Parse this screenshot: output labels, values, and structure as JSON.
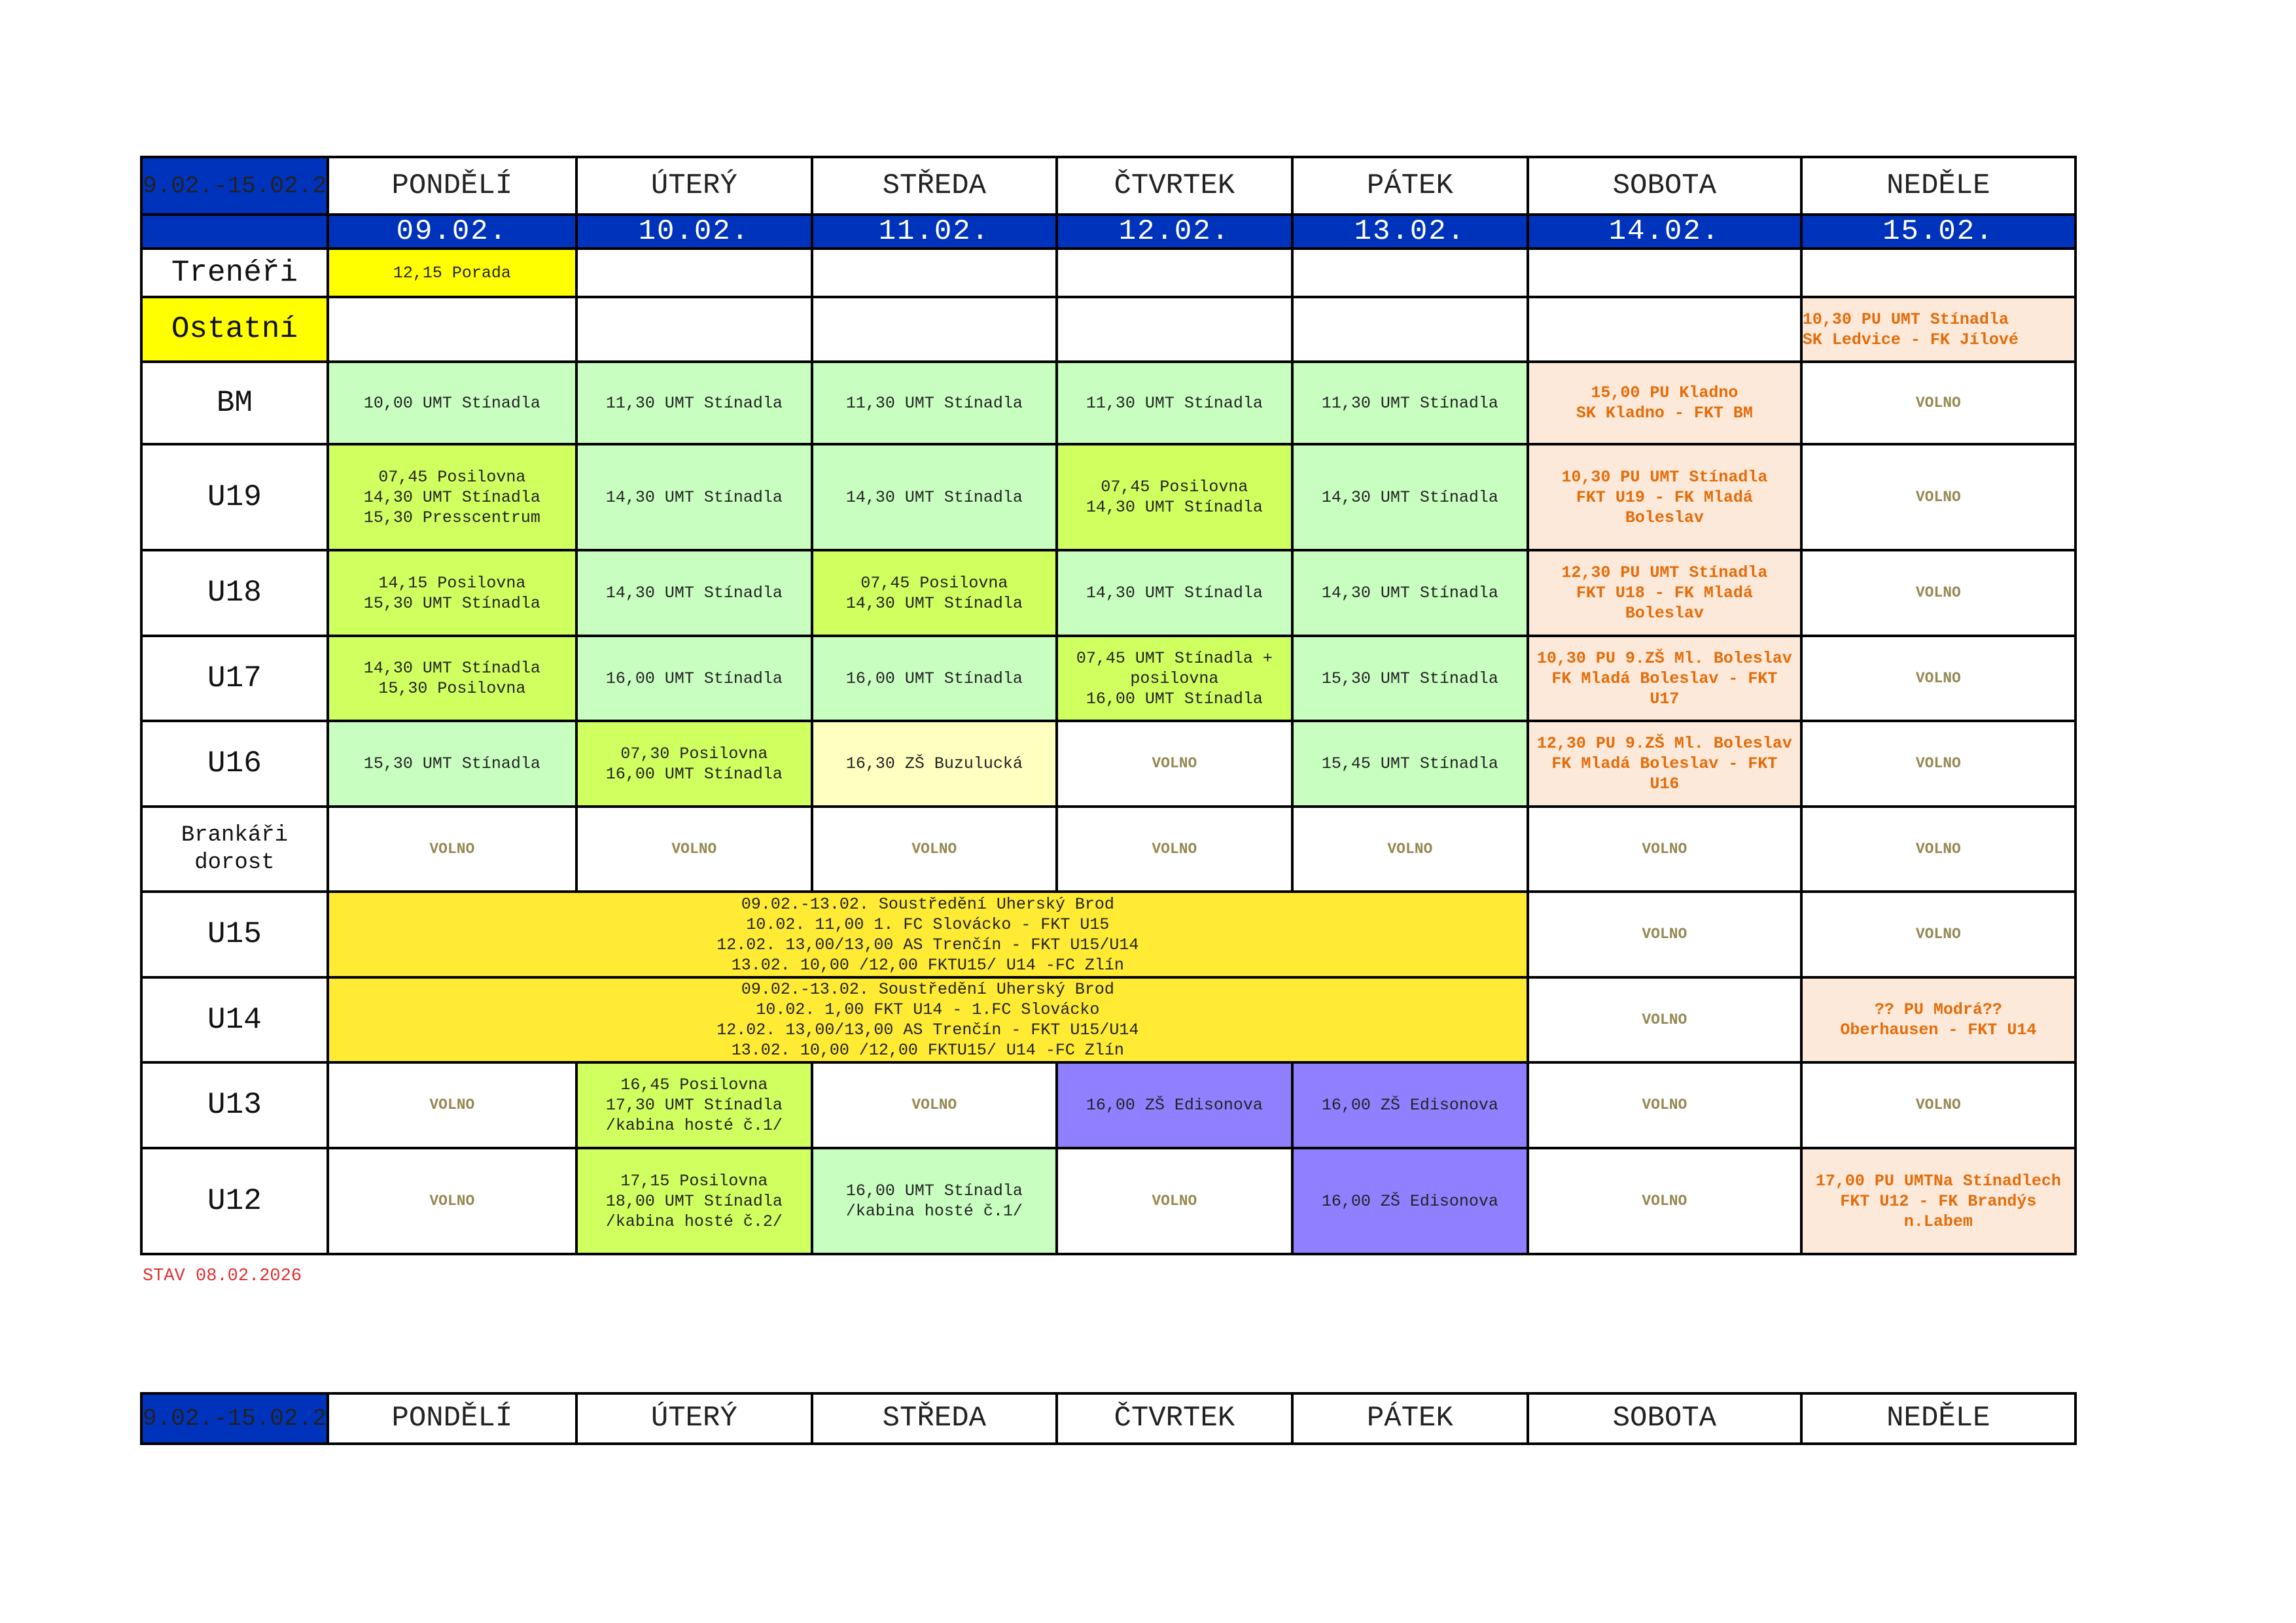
{
  "colors": {
    "header_blue": "#0033bb",
    "training_green": "#c8ffc0",
    "gym_lime": "#d0ff60",
    "school_pale": "#ffffc0",
    "match_peach": "#fde9d9",
    "match_text": "#e46c0a",
    "volno_text": "#948a54",
    "hall_purple": "#9080ff",
    "meeting_yellow": "#ffff00",
    "camp_gold": "#ffeb33",
    "status_red": "#e03030"
  },
  "week_range": "9.02.-15.02.2",
  "days": [
    "PONDĚLÍ",
    "ÚTERÝ",
    "STŘEDA",
    "ČTVRTEK",
    "PÁTEK",
    "SOBOTA",
    "NEDĚLE"
  ],
  "dates": [
    "09.02.",
    "10.02.",
    "11.02.",
    "12.02.",
    "13.02.",
    "14.02.",
    "15.02."
  ],
  "rows": [
    {
      "label": "Trenéři",
      "label_style": "white",
      "cells": [
        {
          "text": "12,15 Porada",
          "style": "yellow"
        },
        {
          "text": "",
          "style": "white"
        },
        {
          "text": "",
          "style": "white"
        },
        {
          "text": "",
          "style": "white"
        },
        {
          "text": "",
          "style": "white"
        },
        {
          "text": "",
          "style": "white"
        },
        {
          "text": "",
          "style": "white"
        }
      ]
    },
    {
      "label": "Ostatní",
      "label_style": "yellow",
      "cells": [
        {
          "text": "",
          "style": "white"
        },
        {
          "text": "",
          "style": "white"
        },
        {
          "text": "",
          "style": "white"
        },
        {
          "text": "",
          "style": "white"
        },
        {
          "text": "",
          "style": "white"
        },
        {
          "text": "",
          "style": "white"
        },
        {
          "text": "10,30 PU UMT Stínadla\nSK Ledvice - FK Jílové",
          "style": "peach left"
        }
      ]
    },
    {
      "label": "BM",
      "label_style": "white",
      "cells": [
        {
          "text": "10,00 UMT Stínadla",
          "style": "green"
        },
        {
          "text": "11,30 UMT Stínadla",
          "style": "green"
        },
        {
          "text": "11,30 UMT Stínadla",
          "style": "green"
        },
        {
          "text": "11,30 UMT Stínadla",
          "style": "green"
        },
        {
          "text": "11,30 UMT Stínadla",
          "style": "green"
        },
        {
          "text": "15,00 PU Kladno\nSK Kladno - FKT BM",
          "style": "peach"
        },
        {
          "text": "VOLNO",
          "style": "volno"
        }
      ]
    },
    {
      "label": "U19",
      "label_style": "white",
      "cells": [
        {
          "text": "07,45 Posilovna\n14,30 UMT Stínadla\n15,30 Presscentrum",
          "style": "lime"
        },
        {
          "text": "14,30 UMT Stínadla",
          "style": "green"
        },
        {
          "text": "14,30 UMT Stínadla",
          "style": "green"
        },
        {
          "text": "07,45 Posilovna\n14,30 UMT Stínadla",
          "style": "lime"
        },
        {
          "text": "14,30 UMT Stínadla",
          "style": "green"
        },
        {
          "text": "10,30 PU UMT Stínadla\nFKT U19 - FK Mladá\nBoleslav",
          "style": "peach"
        },
        {
          "text": "VOLNO",
          "style": "volno"
        }
      ]
    },
    {
      "label": "U18",
      "label_style": "white",
      "cells": [
        {
          "text": "14,15 Posilovna\n15,30 UMT Stínadla",
          "style": "lime"
        },
        {
          "text": "14,30 UMT Stínadla",
          "style": "green"
        },
        {
          "text": "07,45 Posilovna\n14,30 UMT Stínadla",
          "style": "lime"
        },
        {
          "text": "14,30 UMT Stínadla",
          "style": "green"
        },
        {
          "text": "14,30 UMT Stínadla",
          "style": "green"
        },
        {
          "text": "12,30 PU UMT Stínadla\nFKT U18 - FK Mladá\nBoleslav",
          "style": "peach"
        },
        {
          "text": "VOLNO",
          "style": "volno"
        }
      ]
    },
    {
      "label": "U17",
      "label_style": "white",
      "cells": [
        {
          "text": "14,30  UMT Stínadla\n15,30 Posilovna",
          "style": "lime"
        },
        {
          "text": "16,00 UMT Stínadla",
          "style": "green"
        },
        {
          "text": "16,00 UMT Stínadla",
          "style": "green"
        },
        {
          "text": "07,45 UMT Stínadla +\nposilovna\n16,00 UMT Stínadla",
          "style": "lime"
        },
        {
          "text": "15,30 UMT Stínadla",
          "style": "green"
        },
        {
          "text": "10,30 PU 9.ZŠ Ml. Boleslav\nFK Mladá Boleslav - FKT\nU17",
          "style": "peach"
        },
        {
          "text": "VOLNO",
          "style": "volno"
        }
      ]
    },
    {
      "label": "U16",
      "label_style": "white",
      "cells": [
        {
          "text": "15,30 UMT Stínadla",
          "style": "green"
        },
        {
          "text": "07,30 Posilovna\n16,00 UMT Stínadla",
          "style": "lime"
        },
        {
          "text": "16,30 ZŠ Buzulucká",
          "style": "pale"
        },
        {
          "text": "VOLNO",
          "style": "volno"
        },
        {
          "text": "15,45 UMT Stínadla",
          "style": "green"
        },
        {
          "text": "12,30 PU 9.ZŠ Ml. Boleslav\nFK Mladá Boleslav - FKT\nU16",
          "style": "peach"
        },
        {
          "text": "VOLNO",
          "style": "volno"
        }
      ]
    },
    {
      "label": "Brankáři\ndorost",
      "label_style": "white small",
      "cells": [
        {
          "text": "VOLNO",
          "style": "volno"
        },
        {
          "text": "VOLNO",
          "style": "volno"
        },
        {
          "text": "VOLNO",
          "style": "volno"
        },
        {
          "text": "VOLNO",
          "style": "volno"
        },
        {
          "text": "VOLNO",
          "style": "volno"
        },
        {
          "text": "VOLNO",
          "style": "volno"
        },
        {
          "text": "VOLNO",
          "style": "volno"
        }
      ]
    },
    {
      "label": "U15",
      "label_style": "white",
      "cells": [
        {
          "text": "09.02.-13.02. Soustředění Uherský Brod\n10.02. 11,00 1. FC Slovácko - FKT U15\n12.02. 13,00/13,00  AS Trenčín - FKT U15/U14\n13.02. 10,00 /12,00  FKTU15/ U14 -FC Zlín",
          "style": "gold",
          "span": 5
        },
        {
          "text": "VOLNO",
          "style": "volno"
        },
        {
          "text": "VOLNO",
          "style": "volno"
        }
      ]
    },
    {
      "label": "U14",
      "label_style": "white",
      "cells": [
        {
          "text": "09.02.-13.02. Soustředění Uherský Brod\n10.02.   1,00 FKT U14 - 1.FC Slovácko\n12.02. 13,00/13,00  AS Trenčín - FKT U15/U14\n13.02. 10,00 /12,00  FKTU15/ U14 -FC Zlín",
          "style": "gold",
          "span": 5
        },
        {
          "text": "VOLNO",
          "style": "volno"
        },
        {
          "text": "?? PU Modrá??\nOberhausen - FKT U14",
          "style": "peach"
        }
      ]
    },
    {
      "label": "U13",
      "label_style": "white",
      "cells": [
        {
          "text": "VOLNO",
          "style": "volno"
        },
        {
          "text": "16,45 Posilovna\n17,30 UMT Stínadla\n/kabina hosté č.1/",
          "style": "lime"
        },
        {
          "text": "VOLNO",
          "style": "volno"
        },
        {
          "text": "16,00 ZŠ Edisonova",
          "style": "purple"
        },
        {
          "text": "16,00 ZŠ Edisonova",
          "style": "purple"
        },
        {
          "text": "VOLNO",
          "style": "volno"
        },
        {
          "text": "VOLNO",
          "style": "volno"
        }
      ]
    },
    {
      "label": "U12",
      "label_style": "white",
      "cells": [
        {
          "text": "VOLNO",
          "style": "volno"
        },
        {
          "text": "17,15 Posilovna\n18,00 UMT Stínadla\n/kabina hosté č.2/",
          "style": "lime"
        },
        {
          "text": "16,00 UMT Stínadla\n/kabina hosté č.1/",
          "style": "green"
        },
        {
          "text": "VOLNO",
          "style": "volno"
        },
        {
          "text": "16,00 ZŠ Edisonova",
          "style": "purple"
        },
        {
          "text": "VOLNO",
          "style": "volno"
        },
        {
          "text": "17,00 PU UMTNa Stínadlech\nFKT U12 - FK Brandýs\nn.Labem",
          "style": "peach"
        }
      ]
    }
  ],
  "status": "STAV 08.02.2026",
  "next_week": {
    "week_range": "9.02.-15.02.2",
    "days": [
      "PONDĚLÍ",
      "ÚTERÝ",
      "STŘEDA",
      "ČTVRTEK",
      "PÁTEK",
      "SOBOTA",
      "NEDĚLE"
    ]
  }
}
